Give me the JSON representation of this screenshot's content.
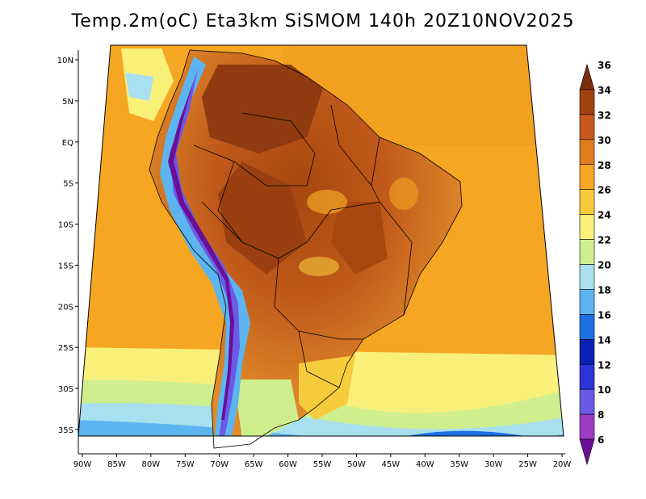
{
  "title": "Temp.2m(oC) Eta3km SiSMOM 140h 20Z10NOV2025",
  "axes": {
    "lon_labels": [
      "90W",
      "85W",
      "80W",
      "75W",
      "70W",
      "65W",
      "60W",
      "55W",
      "50W",
      "45W",
      "40W",
      "35W",
      "30W",
      "25W",
      "20W"
    ],
    "lat_labels": [
      "10N",
      "5N",
      "EQ",
      "5S",
      "10S",
      "15S",
      "20S",
      "25S",
      "30S",
      "35S"
    ]
  },
  "colorbar": {
    "labels": [
      "36",
      "34",
      "32",
      "30",
      "28",
      "26",
      "24",
      "22",
      "20",
      "18",
      "16",
      "14",
      "12",
      "10",
      "8",
      "6"
    ],
    "colors": [
      "#7a2e0e",
      "#a0430f",
      "#c8591c",
      "#e07c1d",
      "#f5a623",
      "#f7cc3c",
      "#f9f07a",
      "#cfef8f",
      "#a8e0ef",
      "#5cb5f0",
      "#1e6fe0",
      "#0a22b4",
      "#2a34d8",
      "#6b5ae8",
      "#9a3cc4",
      "#6a0f96"
    ]
  }
}
